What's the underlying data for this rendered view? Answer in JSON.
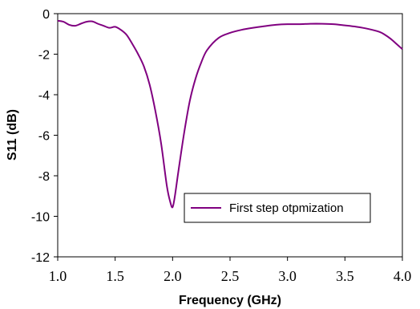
{
  "chart_data": {
    "type": "line",
    "xlabel": "Frequency (GHz)",
    "ylabel": "S11 (dB)",
    "xlim": [
      1.0,
      4.0
    ],
    "ylim": [
      -12,
      0
    ],
    "xticks": [
      "1.0",
      "1.5",
      "2.0",
      "2.5",
      "3.0",
      "3.5",
      "4.0"
    ],
    "yticks": [
      "0",
      "-2",
      "-4",
      "-6",
      "-8",
      "-10",
      "-12"
    ],
    "grid": false,
    "legend_position": "lower-right",
    "series": [
      {
        "name": "First step otpmization",
        "color": "#800080",
        "x": [
          1.0,
          1.05,
          1.1,
          1.15,
          1.2,
          1.25,
          1.3,
          1.35,
          1.4,
          1.45,
          1.5,
          1.55,
          1.6,
          1.65,
          1.7,
          1.75,
          1.8,
          1.85,
          1.9,
          1.95,
          1.98,
          2.0,
          2.02,
          2.05,
          2.1,
          2.15,
          2.2,
          2.25,
          2.3,
          2.4,
          2.5,
          2.6,
          2.7,
          2.8,
          2.9,
          3.0,
          3.1,
          3.2,
          3.3,
          3.4,
          3.5,
          3.6,
          3.7,
          3.8,
          3.85,
          3.9,
          3.95,
          4.0
        ],
        "y": [
          -0.35,
          -0.4,
          -0.55,
          -0.6,
          -0.5,
          -0.4,
          -0.38,
          -0.5,
          -0.6,
          -0.7,
          -0.65,
          -0.8,
          -1.05,
          -1.5,
          -2.0,
          -2.6,
          -3.5,
          -4.8,
          -6.4,
          -8.5,
          -9.3,
          -9.55,
          -9.0,
          -7.8,
          -5.9,
          -4.3,
          -3.2,
          -2.4,
          -1.8,
          -1.2,
          -0.95,
          -0.8,
          -0.7,
          -0.62,
          -0.55,
          -0.52,
          -0.52,
          -0.5,
          -0.5,
          -0.52,
          -0.58,
          -0.65,
          -0.75,
          -0.9,
          -1.05,
          -1.25,
          -1.5,
          -1.75
        ]
      }
    ]
  }
}
